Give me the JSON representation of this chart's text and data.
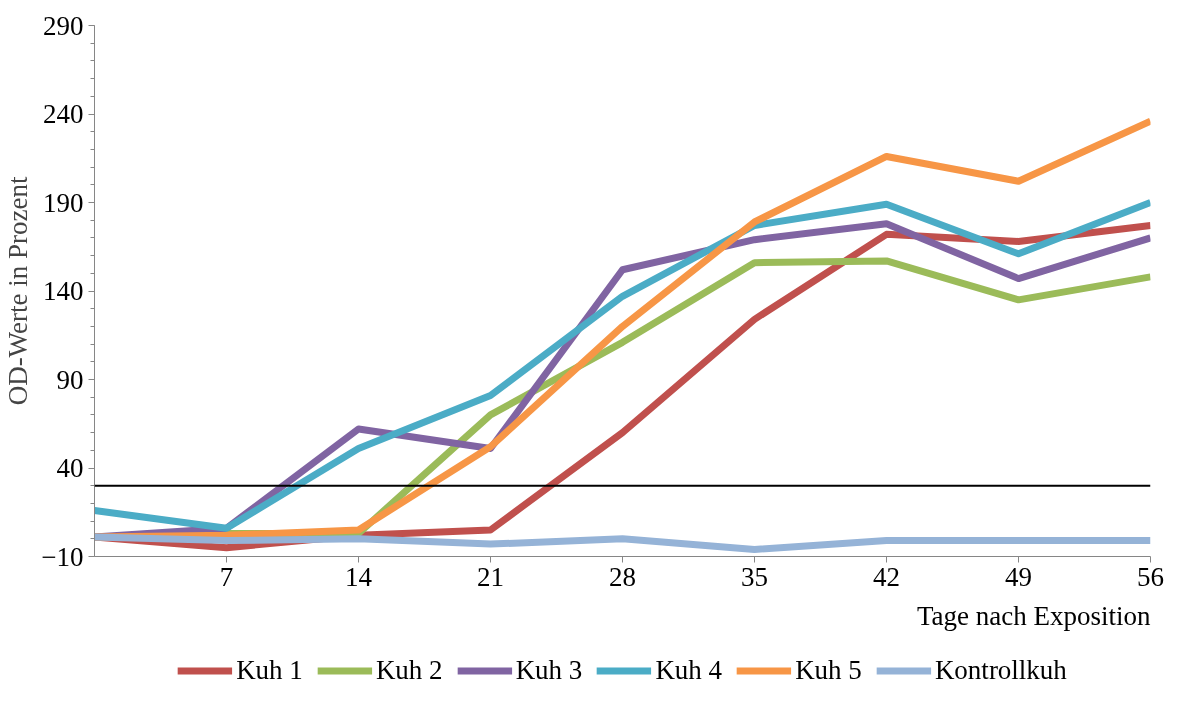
{
  "chart_data": {
    "type": "line",
    "xlabel": "Tage nach Exposition",
    "ylabel": "OD-Werte in Prozent",
    "x": [
      0,
      7,
      14,
      21,
      28,
      35,
      42,
      49,
      56
    ],
    "xlim": [
      0,
      56
    ],
    "xticks": [
      7,
      14,
      21,
      28,
      35,
      42,
      49,
      56
    ],
    "ylim": [
      -10,
      290
    ],
    "yticks": [
      -10,
      40,
      90,
      140,
      190,
      240,
      290
    ],
    "grid": false,
    "legend": "bottom",
    "marker": "none",
    "line_style": "solid",
    "ref_lines": [
      {
        "axis": "y",
        "value": 30,
        "color": "#000000"
      }
    ],
    "series": [
      {
        "name": "Kuh 1",
        "color": "#c0504d",
        "values": [
          1,
          -5,
          2,
          5,
          60,
          124,
          172,
          168,
          177
        ]
      },
      {
        "name": "Kuh 2",
        "color": "#9bbb59",
        "values": [
          1,
          3,
          3,
          70,
          111,
          156,
          157,
          135,
          148
        ]
      },
      {
        "name": "Kuh 3",
        "color": "#8064a2",
        "values": [
          1,
          6,
          62,
          51,
          152,
          169,
          178,
          147,
          170
        ]
      },
      {
        "name": "Kuh 4",
        "color": "#4bacc6",
        "values": [
          16,
          6,
          51,
          81,
          137,
          177,
          189,
          161,
          190
        ]
      },
      {
        "name": "Kuh 5",
        "color": "#f79646",
        "values": [
          1,
          2,
          5,
          52,
          120,
          179,
          216,
          202,
          236
        ]
      },
      {
        "name": "Kontrollkuh",
        "color": "#95b3d7",
        "values": [
          1,
          -1,
          0,
          -3,
          0,
          -6,
          -1,
          -1,
          -1
        ]
      }
    ]
  }
}
